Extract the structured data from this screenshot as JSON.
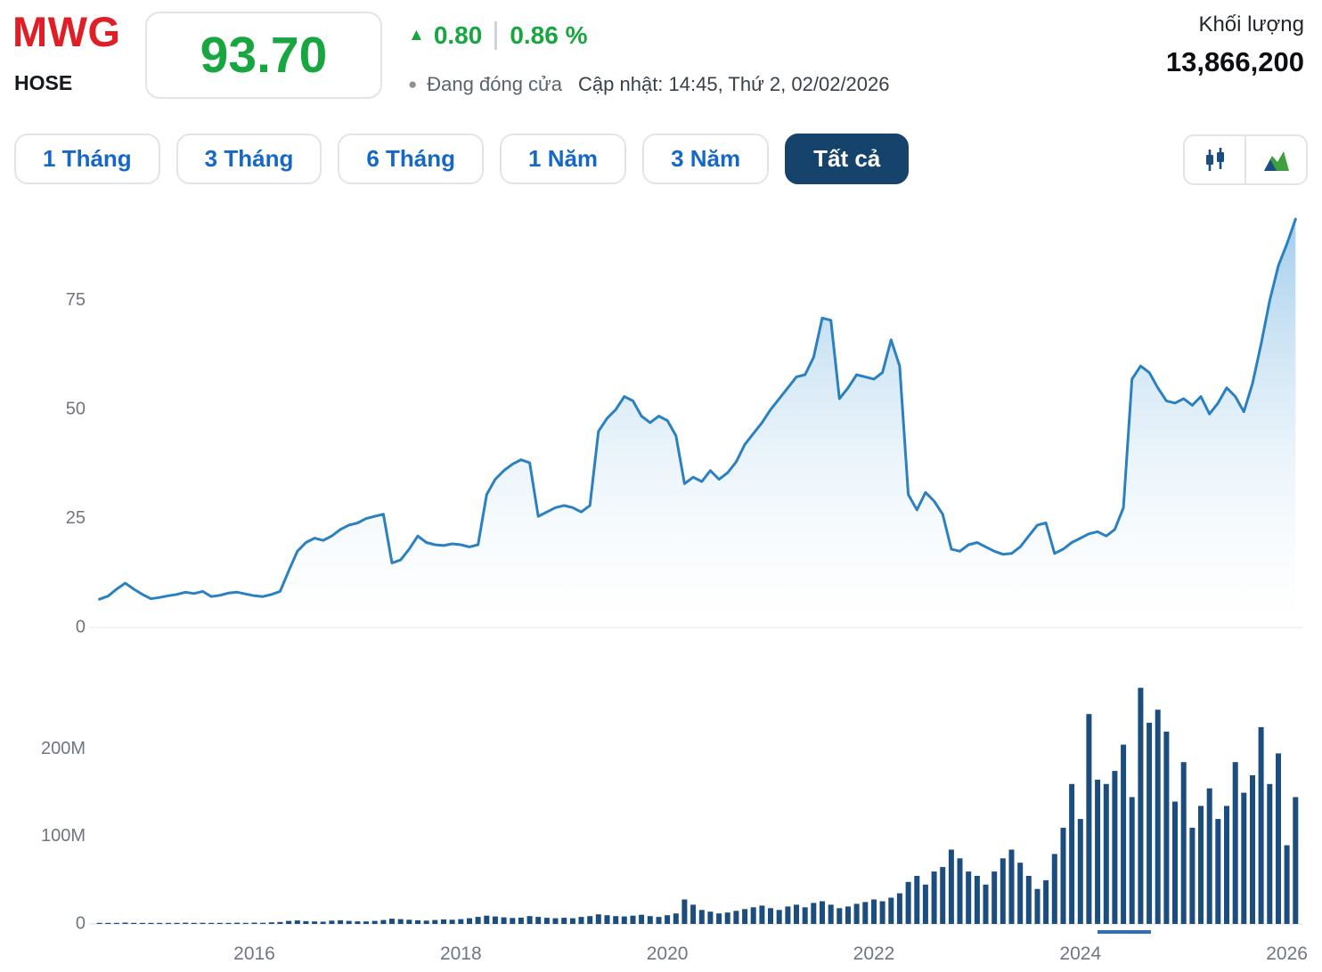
{
  "header": {
    "symbol": "MWG",
    "exchange": "HOSE",
    "price": "93.70",
    "change_icon": "▲",
    "change_value": "0.80",
    "change_percent": "0.86 %",
    "status_icon": "●",
    "status_text": "Đang đóng cửa",
    "updated_text": "Cập nhật: 14:45, Thứ 2, 02/02/2026",
    "volume_label": "Khối lượng",
    "volume_value": "13,866,200"
  },
  "range_buttons": [
    {
      "label": "1 Tháng",
      "active": false
    },
    {
      "label": "3 Tháng",
      "active": false
    },
    {
      "label": "6 Tháng",
      "active": false
    },
    {
      "label": "1 Năm",
      "active": false
    },
    {
      "label": "3 Năm",
      "active": false
    },
    {
      "label": "Tất cả",
      "active": true
    }
  ],
  "chart_type_toggle": {
    "options": [
      "candlestick-icon",
      "area-chart-icon"
    ],
    "selected": "area"
  },
  "colors": {
    "symbol_red": "#e01e25",
    "price_green": "#18a641",
    "button_blue": "#1668c7",
    "active_button_bg": "#16436b",
    "line_blue": "#2b80c0",
    "area_fill_top": "#a6cfec",
    "volume_bar": "#1b4d7e"
  },
  "chart_data": [
    {
      "type": "area",
      "title": "MWG price history - all time",
      "x_start": 2014.5,
      "x_step_months": 1,
      "values": [
        6.5,
        7.2,
        8.8,
        10.2,
        8.8,
        7.6,
        6.6,
        6.9,
        7.3,
        7.6,
        8.1,
        7.8,
        8.3,
        7.1,
        7.4,
        7.9,
        8.1,
        7.7,
        7.3,
        7.1,
        7.6,
        8.3,
        13.0,
        17.5,
        19.5,
        20.5,
        20.0,
        21.0,
        22.5,
        23.5,
        24.0,
        25.0,
        25.5,
        26.0,
        14.8,
        15.5,
        18.0,
        21.0,
        19.5,
        19.0,
        18.8,
        19.2,
        19.0,
        18.5,
        19.0,
        30.5,
        34.0,
        36.0,
        37.5,
        38.5,
        37.8,
        25.5,
        26.5,
        27.5,
        28.0,
        27.5,
        26.5,
        28.0,
        45.0,
        48.0,
        50.0,
        53.0,
        52.0,
        48.5,
        47.0,
        48.5,
        47.5,
        44.0,
        33.0,
        34.5,
        33.5,
        36.0,
        34.0,
        35.5,
        38.0,
        42.0,
        44.5,
        47.0,
        50.0,
        52.5,
        55.0,
        57.5,
        58.0,
        62.0,
        71.0,
        70.5,
        52.5,
        55.0,
        58.0,
        57.5,
        57.0,
        58.5,
        66.0,
        60.0,
        30.5,
        27.0,
        31.0,
        29.0,
        26.0,
        18.0,
        17.5,
        19.0,
        19.5,
        18.5,
        17.5,
        16.8,
        17.0,
        18.5,
        21.0,
        23.5,
        24.0,
        17.0,
        18.0,
        19.5,
        20.5,
        21.5,
        22.0,
        21.0,
        22.5,
        27.5,
        57.0,
        60.0,
        58.5,
        55.0,
        52.0,
        51.5,
        52.5,
        51.0,
        53.0,
        49.0,
        51.5,
        55.0,
        53.0,
        49.5,
        56.0,
        65.0,
        75.0,
        83.0,
        88.0,
        93.7
      ],
      "yticks": [
        75,
        50,
        25,
        0
      ],
      "ylim": [
        0,
        97
      ],
      "xticks": [
        2016,
        2018,
        2020,
        2022,
        2024,
        2026
      ],
      "xlim": [
        2014.4,
        2026.15
      ],
      "grid": false,
      "legend": false
    },
    {
      "type": "bar",
      "title": "Volume (millions of shares)",
      "x_start": 2014.5,
      "x_step_months": 1,
      "values": [
        0.6,
        0.8,
        1.2,
        1.5,
        1.0,
        0.8,
        0.7,
        0.8,
        1.0,
        1.2,
        1.4,
        1.1,
        1.3,
        1.0,
        0.9,
        1.2,
        1.4,
        1.2,
        1.5,
        1.3,
        1.8,
        2.2,
        3.5,
        4.0,
        3.2,
        2.8,
        2.5,
        3.8,
        4.2,
        3.5,
        3.0,
        2.8,
        3.5,
        4.5,
        6.0,
        5.5,
        4.8,
        4.2,
        3.8,
        4.5,
        5.2,
        4.8,
        5.5,
        6.5,
        8.0,
        9.5,
        8.5,
        7.5,
        6.8,
        7.2,
        9.0,
        8.0,
        7.0,
        6.5,
        7.0,
        6.5,
        8.0,
        9.0,
        11.0,
        10.0,
        9.0,
        8.5,
        9.5,
        10.5,
        9.0,
        8.0,
        10.0,
        12.0,
        28.0,
        22.0,
        16.0,
        14.0,
        12.0,
        13.0,
        15.0,
        17.0,
        19.0,
        21.0,
        18.0,
        16.0,
        20.0,
        22.0,
        19.0,
        24.0,
        26.0,
        22.0,
        18.0,
        20.0,
        23.0,
        25.0,
        28.0,
        26.0,
        30.0,
        35.0,
        48.0,
        55.0,
        45.0,
        60.0,
        65.0,
        85.0,
        75.0,
        60.0,
        55.0,
        45.0,
        60.0,
        75.0,
        85.0,
        70.0,
        55.0,
        40.0,
        50.0,
        80.0,
        110.0,
        160.0,
        120.0,
        240.0,
        165.0,
        160.0,
        175.0,
        205.0,
        145.0,
        270.0,
        230.0,
        245.0,
        220.0,
        140.0,
        185.0,
        110.0,
        135.0,
        155.0,
        120.0,
        135.0,
        185.0,
        150.0,
        170.0,
        225.0,
        160.0,
        195.0,
        90.0,
        145.0
      ],
      "yticks": [
        200,
        100,
        0
      ],
      "ytick_labels": [
        "200M",
        "100M",
        "0"
      ],
      "ylim": [
        0,
        285
      ],
      "xticks": [
        2016,
        2018,
        2020,
        2022,
        2024,
        2026
      ],
      "xlim": [
        2014.4,
        2026.15
      ],
      "grid": false,
      "legend": false
    }
  ]
}
